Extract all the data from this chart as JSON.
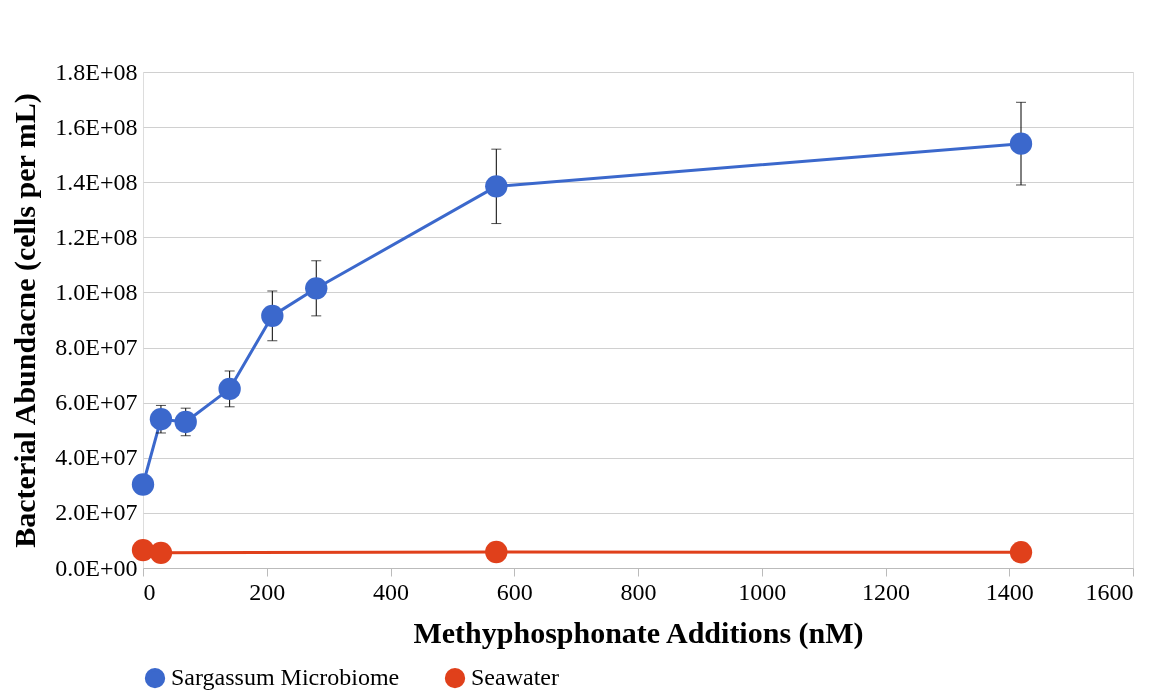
{
  "chart_data": {
    "type": "line",
    "xlabel": "Methyphosphonate Additions (nM)",
    "ylabel": "Bacterial Abundacne (cells per mL)",
    "x": [
      0,
      29,
      69,
      140,
      209,
      280,
      571,
      1419
    ],
    "series": [
      {
        "name": "Sargassum Microbiome",
        "color": "#3b68cc",
        "values": [
          30300000,
          54000000,
          53000000,
          65000000,
          91500000,
          101500000,
          138500000,
          154000000
        ],
        "errors": [
          null,
          5000000,
          5000000,
          6500000,
          9000000,
          10000000,
          13500000,
          15000000
        ]
      },
      {
        "name": "Seawater",
        "color": "#e0401b",
        "x": [
          0,
          29,
          571,
          1419
        ],
        "values": [
          6500000,
          5500000,
          5800000,
          5700000
        ]
      }
    ],
    "xlim": [
      0,
      1600
    ],
    "xticks": [
      0,
      200,
      400,
      600,
      800,
      1000,
      1200,
      1400,
      1600
    ],
    "ylim": [
      0,
      180000000
    ],
    "yticks": [
      {
        "value": 0,
        "label": "0.0E+00"
      },
      {
        "value": 20000000,
        "label": "2.0E+07"
      },
      {
        "value": 40000000,
        "label": "4.0E+07"
      },
      {
        "value": 60000000,
        "label": "6.0E+07"
      },
      {
        "value": 80000000,
        "label": "8.0E+07"
      },
      {
        "value": 100000000,
        "label": "1.0E+08"
      },
      {
        "value": 120000000,
        "label": "1.2E+08"
      },
      {
        "value": 140000000,
        "label": "1.4E+08"
      },
      {
        "value": 160000000,
        "label": "1.6E+08"
      },
      {
        "value": 180000000,
        "label": "1.8E+08"
      }
    ],
    "grid": "y",
    "legend": "bottom",
    "marker": "circle",
    "line_style": "solid"
  }
}
